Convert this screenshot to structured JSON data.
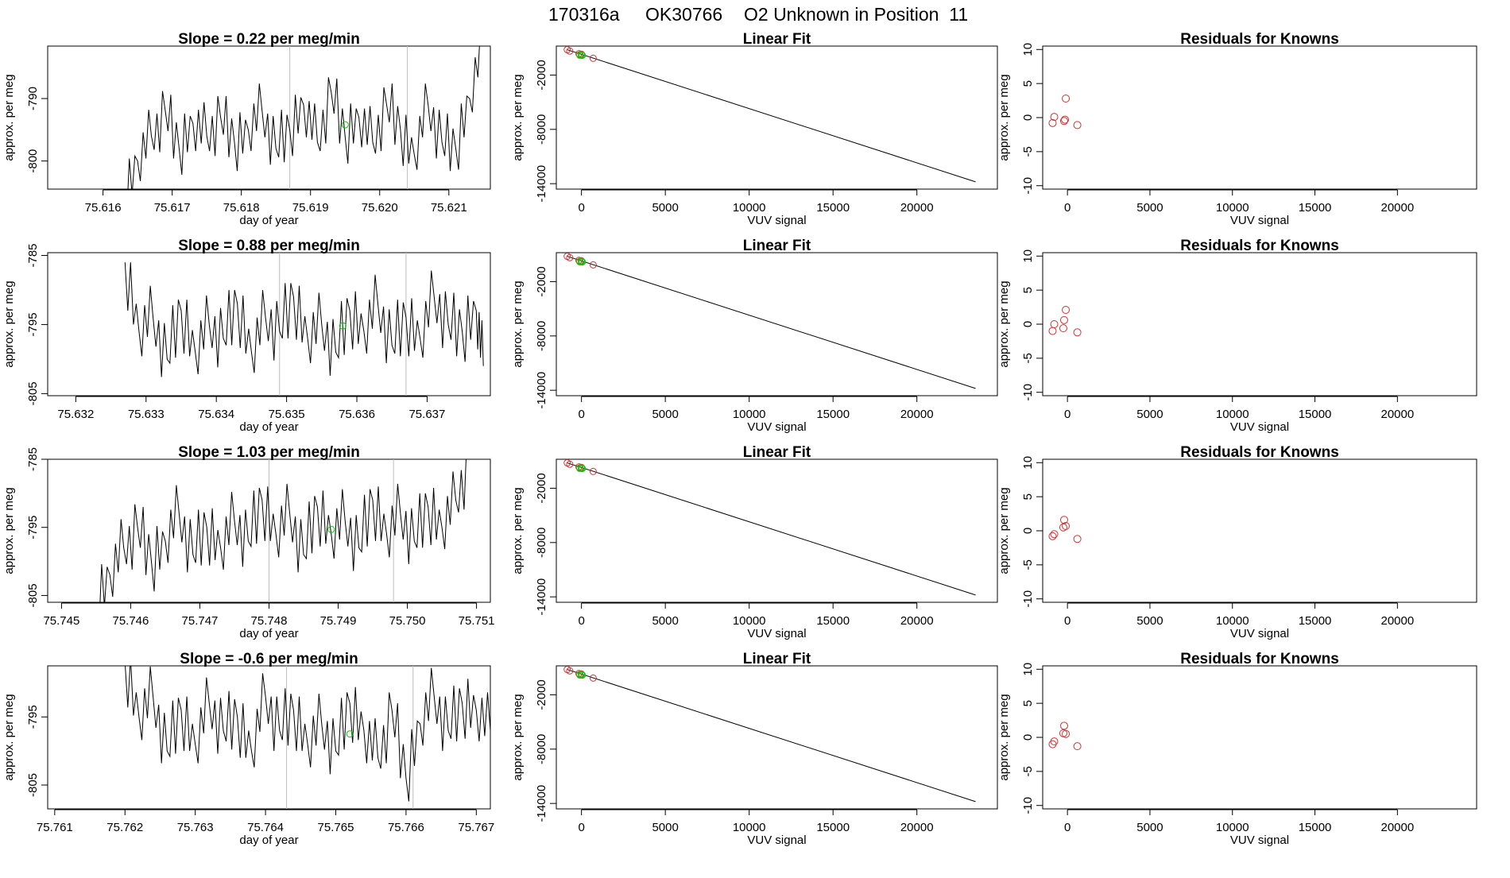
{
  "figure": {
    "title_parts": [
      "170316a",
      "OK30766",
      "O2 Unknown in Position  11"
    ]
  },
  "colors": {
    "axes": "#000000",
    "trace": "#000000",
    "vline": "#bebebe",
    "green_marker": "#00cc00",
    "red_marker": "#cd3333"
  },
  "chart_data": [
    {
      "type": "line",
      "row": 1,
      "panel": "trace",
      "title_prefix": "Slope = ",
      "slope": "0.22",
      "title_suffix": " per meg/min",
      "xlabel": "day of year",
      "ylabel": "approx. per meg",
      "xlim": [
        75.6152,
        75.6216
      ],
      "ylim": [
        -804.5,
        -781.6
      ],
      "x_ticks": [
        "75.616",
        "75.617",
        "75.618",
        "75.619",
        "75.620",
        "75.621"
      ],
      "y_ticks": [
        "-790",
        "-800"
      ],
      "vlines": [
        75.6187,
        75.6204
      ],
      "t_start": 75.6163,
      "t_end": 75.6215,
      "series": [
        {
          "x": [
            75.6163,
            75.6165,
            75.6167,
            75.6169,
            75.6171,
            75.6173,
            75.6175,
            75.6177,
            75.6179,
            75.6181,
            75.6183,
            75.6185,
            75.6187,
            75.6189,
            75.6191,
            75.6193,
            75.6195,
            75.6197,
            75.6199,
            75.6201,
            75.6203,
            75.6205,
            75.6207,
            75.6209,
            75.6211,
            75.6213,
            75.6215
          ],
          "y": [
            -806,
            -800,
            -796,
            -792,
            -798,
            -794,
            -796,
            -793,
            -797,
            -795,
            -792,
            -798,
            -795,
            -791,
            -797,
            -789,
            -796,
            -793,
            -797,
            -791,
            -795,
            -799,
            -791,
            -797,
            -798,
            -790,
            -781
          ]
        }
      ],
      "marker": {
        "x": 75.6195,
        "y": -794.2
      }
    },
    {
      "type": "scatter",
      "row": 1,
      "panel": "fit",
      "title": "Linear Fit",
      "xlabel": "VUV signal",
      "ylabel": "approx. per meg",
      "xlim": [
        -1500,
        24800
      ],
      "ylim": [
        -14600,
        1200
      ],
      "x_ticks": [
        0,
        5000,
        10000,
        15000,
        20000
      ],
      "y_ticks": [
        -2000,
        -8000,
        -14000
      ],
      "fit_line": [
        [
          -850,
          800
        ],
        [
          23500,
          -13800
        ]
      ],
      "known_points": [
        [
          -850,
          800
        ],
        [
          -700,
          650
        ],
        [
          -150,
          350
        ],
        [
          -100,
          200
        ],
        [
          0,
          300
        ],
        [
          700,
          -150
        ]
      ],
      "unknown_points": [
        [
          -100,
          250
        ],
        [
          0,
          200
        ],
        [
          50,
          180
        ]
      ]
    },
    {
      "type": "scatter",
      "row": 1,
      "panel": "resid",
      "title": "Residuals for Knowns",
      "xlabel": "VUV signal",
      "ylabel": "approx. per meg",
      "xlim": [
        -1500,
        24800
      ],
      "ylim": [
        -10.5,
        10.5
      ],
      "x_ticks": [
        0,
        5000,
        10000,
        15000,
        20000
      ],
      "y_ticks": [
        10,
        5,
        0,
        -5,
        -10
      ],
      "points": [
        [
          -900,
          -0.8
        ],
        [
          -800,
          0.1
        ],
        [
          -200,
          -0.5
        ],
        [
          -150,
          -0.3
        ],
        [
          -100,
          2.8
        ],
        [
          600,
          -1.1
        ]
      ]
    },
    {
      "type": "line",
      "row": 2,
      "panel": "trace",
      "title_prefix": "Slope = ",
      "slope": "0.88",
      "title_suffix": " per meg/min",
      "xlabel": "day of year",
      "ylabel": "approx. per meg",
      "xlim": [
        75.6316,
        75.6379
      ],
      "ylim": [
        -805.3,
        -784.6
      ],
      "x_ticks": [
        "75.632",
        "75.633",
        "75.634",
        "75.635",
        "75.636",
        "75.637"
      ],
      "y_ticks": [
        "-785",
        "-795",
        "-805"
      ],
      "vlines": [
        75.6349,
        75.6367
      ],
      "t_start": 75.6327,
      "t_end": 75.6378,
      "series": [
        {
          "x": [
            75.6327,
            75.6329,
            75.6331,
            75.6333,
            75.6335,
            75.6337,
            75.6339,
            75.6341,
            75.6343,
            75.6345,
            75.6347,
            75.6349,
            75.6351,
            75.6353,
            75.6355,
            75.6357,
            75.6359,
            75.6361,
            75.6363,
            75.6365,
            75.6367,
            75.6369,
            75.6371,
            75.6373,
            75.6375,
            75.6377,
            75.6378
          ],
          "y": [
            -786,
            -796,
            -794,
            -800,
            -793,
            -799,
            -795,
            -797,
            -792,
            -799,
            -794,
            -796,
            -791,
            -797,
            -795,
            -799,
            -793,
            -796,
            -792,
            -798,
            -794,
            -797,
            -791,
            -795,
            -796,
            -793,
            -801
          ]
        }
      ],
      "marker": {
        "x": 75.6358,
        "y": -795.2
      }
    },
    {
      "type": "scatter",
      "row": 2,
      "panel": "fit",
      "title": "Linear Fit",
      "xlabel": "VUV signal",
      "ylabel": "approx. per meg",
      "xlim": [
        -1500,
        24800
      ],
      "ylim": [
        -14600,
        1200
      ],
      "x_ticks": [
        0,
        5000,
        10000,
        15000,
        20000
      ],
      "y_ticks": [
        -2000,
        -8000,
        -14000
      ],
      "fit_line": [
        [
          -850,
          800
        ],
        [
          23500,
          -13800
        ]
      ],
      "known_points": [
        [
          -850,
          800
        ],
        [
          -700,
          650
        ],
        [
          -150,
          350
        ],
        [
          -100,
          200
        ],
        [
          0,
          300
        ],
        [
          700,
          -150
        ]
      ],
      "unknown_points": [
        [
          -100,
          250
        ],
        [
          0,
          200
        ],
        [
          50,
          180
        ]
      ]
    },
    {
      "type": "scatter",
      "row": 2,
      "panel": "resid",
      "title": "Residuals for Knowns",
      "xlabel": "VUV signal",
      "ylabel": "approx. per meg",
      "xlim": [
        -1500,
        24800
      ],
      "ylim": [
        -10.5,
        10.5
      ],
      "x_ticks": [
        0,
        5000,
        10000,
        15000,
        20000
      ],
      "y_ticks": [
        10,
        5,
        0,
        -5,
        -10
      ],
      "points": [
        [
          -900,
          -1.0
        ],
        [
          -800,
          0.0
        ],
        [
          -250,
          -0.6
        ],
        [
          -200,
          0.6
        ],
        [
          -100,
          2.1
        ],
        [
          600,
          -1.2
        ]
      ]
    },
    {
      "type": "line",
      "row": 3,
      "panel": "trace",
      "title_prefix": "Slope = ",
      "slope": "1.03",
      "title_suffix": " per meg/min",
      "xlabel": "day of year",
      "ylabel": "approx. per meg",
      "xlim": [
        75.7448,
        75.7512
      ],
      "ylim": [
        -806,
        -785
      ],
      "x_ticks": [
        "75.745",
        "75.746",
        "75.747",
        "75.748",
        "75.749",
        "75.750",
        "75.751"
      ],
      "y_ticks": [
        "-785",
        "-795",
        "-805"
      ],
      "vlines": [
        75.748,
        75.7498
      ],
      "t_start": 75.7455,
      "t_end": 75.7509,
      "series": [
        {
          "x": [
            75.7455,
            75.7457,
            75.7459,
            75.7461,
            75.7463,
            75.7465,
            75.7467,
            75.7469,
            75.7471,
            75.7473,
            75.7475,
            75.7477,
            75.7479,
            75.7481,
            75.7483,
            75.7485,
            75.7487,
            75.7489,
            75.7491,
            75.7493,
            75.7495,
            75.7497,
            75.7499,
            75.7501,
            75.7503,
            75.7505,
            75.7507,
            75.7509
          ],
          "y": [
            -806,
            -802,
            -798,
            -795,
            -800,
            -797,
            -793,
            -799,
            -795,
            -798,
            -794,
            -797,
            -791,
            -796,
            -793,
            -799,
            -792,
            -796,
            -794,
            -798,
            -791,
            -796,
            -793,
            -797,
            -792,
            -795,
            -791,
            -785
          ]
        }
      ],
      "marker": {
        "x": 75.7489,
        "y": -795.3
      }
    },
    {
      "type": "scatter",
      "row": 3,
      "panel": "fit",
      "title": "Linear Fit",
      "xlabel": "VUV signal",
      "ylabel": "approx. per meg",
      "xlim": [
        -1500,
        24800
      ],
      "ylim": [
        -14600,
        1200
      ],
      "x_ticks": [
        0,
        5000,
        10000,
        15000,
        20000
      ],
      "y_ticks": [
        -2000,
        -8000,
        -14000
      ],
      "fit_line": [
        [
          -850,
          800
        ],
        [
          23500,
          -13800
        ]
      ],
      "known_points": [
        [
          -850,
          800
        ],
        [
          -700,
          650
        ],
        [
          -150,
          350
        ],
        [
          -100,
          200
        ],
        [
          0,
          300
        ],
        [
          700,
          -150
        ]
      ],
      "unknown_points": [
        [
          -100,
          250
        ],
        [
          0,
          200
        ],
        [
          50,
          180
        ]
      ]
    },
    {
      "type": "scatter",
      "row": 3,
      "panel": "resid",
      "title": "Residuals for Knowns",
      "xlabel": "VUV signal",
      "ylabel": "approx. per meg",
      "xlim": [
        -1500,
        24800
      ],
      "ylim": [
        -10.5,
        10.5
      ],
      "x_ticks": [
        0,
        5000,
        10000,
        15000,
        20000
      ],
      "y_ticks": [
        10,
        5,
        0,
        -5,
        -10
      ],
      "points": [
        [
          -900,
          -0.8
        ],
        [
          -800,
          -0.5
        ],
        [
          -250,
          0.5
        ],
        [
          -200,
          1.6
        ],
        [
          -100,
          0.7
        ],
        [
          600,
          -1.2
        ]
      ]
    },
    {
      "type": "line",
      "row": 4,
      "panel": "trace",
      "title_prefix": "Slope = ",
      "slope": "-0.6",
      "title_suffix": " per meg/min",
      "xlabel": "day of year",
      "ylabel": "approx. per meg",
      "xlim": [
        75.7609,
        75.7672
      ],
      "ylim": [
        -808.5,
        -787.5
      ],
      "x_ticks": [
        "75.761",
        "75.762",
        "75.763",
        "75.764",
        "75.765",
        "75.766",
        "75.767"
      ],
      "y_ticks": [
        "-795",
        "-805"
      ],
      "vlines": [
        75.7643,
        75.7661
      ],
      "t_start": 75.762,
      "t_end": 75.7672,
      "series": [
        {
          "x": [
            75.762,
            75.7622,
            75.7624,
            75.7626,
            75.7628,
            75.763,
            75.7632,
            75.7634,
            75.7636,
            75.7638,
            75.764,
            75.7642,
            75.7644,
            75.7646,
            75.7648,
            75.765,
            75.7652,
            75.7654,
            75.7656,
            75.7658,
            75.766,
            75.7662,
            75.7664,
            75.7666,
            75.7668,
            75.767,
            75.7672
          ],
          "y": [
            -787,
            -795,
            -792,
            -800,
            -794,
            -799,
            -793,
            -797,
            -795,
            -800,
            -792,
            -797,
            -794,
            -799,
            -796,
            -800,
            -793,
            -797,
            -801,
            -794,
            -804,
            -796,
            -792,
            -797,
            -793,
            -794,
            -797
          ]
        }
      ],
      "marker": {
        "x": 75.7652,
        "y": -797.5
      }
    },
    {
      "type": "scatter",
      "row": 4,
      "panel": "fit",
      "title": "Linear Fit",
      "xlabel": "VUV signal",
      "ylabel": "approx. per meg",
      "xlim": [
        -1500,
        24800
      ],
      "ylim": [
        -14600,
        1200
      ],
      "x_ticks": [
        0,
        5000,
        10000,
        15000,
        20000
      ],
      "y_ticks": [
        -2000,
        -8000,
        -14000
      ],
      "fit_line": [
        [
          -850,
          800
        ],
        [
          23500,
          -13800
        ]
      ],
      "known_points": [
        [
          -850,
          800
        ],
        [
          -700,
          650
        ],
        [
          -150,
          350
        ],
        [
          -100,
          200
        ],
        [
          0,
          300
        ],
        [
          700,
          -150
        ]
      ],
      "unknown_points": [
        [
          -100,
          250
        ],
        [
          0,
          200
        ],
        [
          50,
          180
        ]
      ]
    },
    {
      "type": "scatter",
      "row": 4,
      "panel": "resid",
      "title": "Residuals for Knowns",
      "xlabel": "VUV signal",
      "ylabel": "approx. per meg",
      "xlim": [
        -1500,
        24800
      ],
      "ylim": [
        -10.5,
        10.5
      ],
      "x_ticks": [
        0,
        5000,
        10000,
        15000,
        20000
      ],
      "y_ticks": [
        10,
        5,
        0,
        -5,
        -10
      ],
      "points": [
        [
          -900,
          -1.0
        ],
        [
          -800,
          -0.6
        ],
        [
          -250,
          0.6
        ],
        [
          -200,
          1.7
        ],
        [
          -100,
          0.5
        ],
        [
          600,
          -1.3
        ]
      ]
    }
  ]
}
